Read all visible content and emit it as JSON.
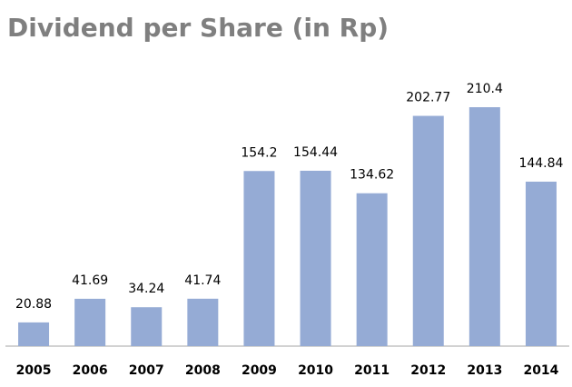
{
  "chart_data": {
    "type": "bar",
    "title": "Dividend per Share (in Rp)",
    "categories": [
      "2005",
      "2006",
      "2007",
      "2008",
      "2009",
      "2010",
      "2011",
      "2012",
      "2013",
      "2014"
    ],
    "values": [
      20.88,
      41.69,
      34.24,
      41.74,
      154.2,
      154.44,
      134.62,
      202.77,
      210.4,
      144.84
    ],
    "color": "#95abd5",
    "ylim": [
      0,
      240
    ]
  }
}
